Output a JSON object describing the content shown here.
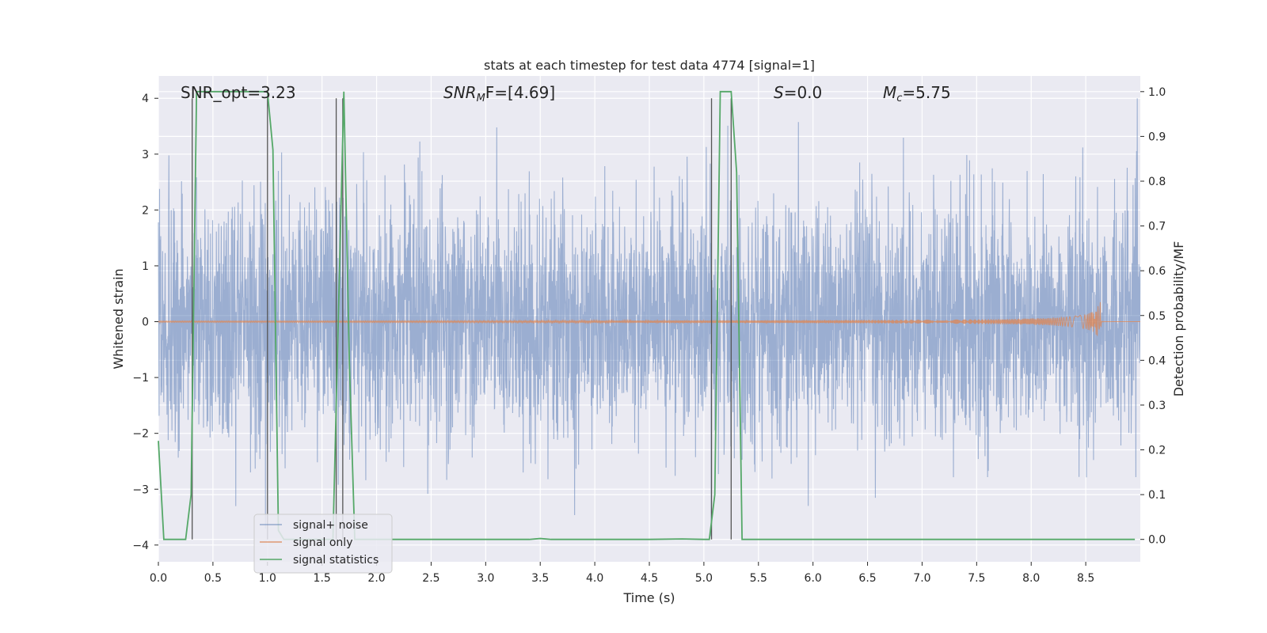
{
  "chart_data": {
    "type": "line",
    "title": "stats at each timestep for test data 4774 [signal=1]",
    "xlabel": "Time (s)",
    "ylabel_left": "Whitened strain",
    "ylabel_right": "Detection probability/MF",
    "xlim": [
      0,
      9.0
    ],
    "ylim_left": [
      -4.3,
      4.4
    ],
    "ylim_right": [
      -0.05,
      1.035
    ],
    "xticks": [
      "0.0",
      "0.5",
      "1.0",
      "1.5",
      "2.0",
      "2.5",
      "3.0",
      "3.5",
      "4.0",
      "4.5",
      "5.0",
      "5.5",
      "6.0",
      "6.5",
      "7.0",
      "7.5",
      "8.0",
      "8.5"
    ],
    "yticks_left": [
      "4",
      "3",
      "2",
      "1",
      "0",
      "−1",
      "−2",
      "−3",
      "−4"
    ],
    "yticks_right": [
      "1.0",
      "0.9",
      "0.8",
      "0.7",
      "0.6",
      "0.5",
      "0.4",
      "0.3",
      "0.2",
      "0.1",
      "0.0"
    ],
    "annotations": {
      "snr_opt": "SNR_opt=3.23",
      "snr_mf_main": "SNR",
      "snr_mf_sub": "M",
      "snr_mf_rest": "F=[4.69]",
      "s_main": "S",
      "s_rest": "=0.0",
      "mc_main": "M",
      "mc_sub": "c",
      "mc_rest": "=5.75"
    },
    "series": [
      {
        "name": "signal+ noise",
        "axis": "left",
        "color": "#4c72b0",
        "opacity": 0.5,
        "description_amplitude_std": 1.0
      },
      {
        "name": "signal only",
        "axis": "left",
        "color": "#dd8452",
        "chirp_end_time": 8.64,
        "chirp_peak": 0.35
      },
      {
        "name": "signal statistics",
        "axis": "right",
        "color": "#55a868",
        "x": [
          0.0,
          0.05,
          0.1,
          0.2,
          0.25,
          0.3,
          0.35,
          0.4,
          0.5,
          0.6,
          0.7,
          0.8,
          0.9,
          1.0,
          1.05,
          1.1,
          1.15,
          1.2,
          1.3,
          1.4,
          1.5,
          1.6,
          1.65,
          1.7,
          1.75,
          1.8,
          1.9,
          2.0,
          2.5,
          3.0,
          3.4,
          3.5,
          3.6,
          4.0,
          4.5,
          4.8,
          5.0,
          5.05,
          5.1,
          5.15,
          5.2,
          5.25,
          5.3,
          5.35,
          5.4,
          5.5,
          6.0,
          7.0,
          8.0,
          8.5,
          8.95
        ],
        "y": [
          0.22,
          0.0,
          0.0,
          0.0,
          0.0,
          0.1,
          1.0,
          1.0,
          1.0,
          1.0,
          1.0,
          1.0,
          1.0,
          1.0,
          0.87,
          0.02,
          0.0,
          0.0,
          0.0,
          0.0,
          0.0,
          0.0,
          0.5,
          1.0,
          0.4,
          0.0,
          0.0,
          0.0,
          0.0,
          0.0,
          0.0,
          0.002,
          0.0,
          0.0,
          0.0,
          0.001,
          0.0,
          0.0,
          0.1,
          1.0,
          1.0,
          1.0,
          0.82,
          0.0,
          0.0,
          0.0,
          0.0,
          0.0,
          0.0,
          0.0,
          0.0
        ]
      }
    ],
    "vlines": [
      0.31,
      1.0,
      1.63,
      1.69,
      5.07,
      5.25
    ],
    "vline_color": "#555555",
    "legend": {
      "position": "lower-left",
      "entries": [
        "signal+ noise",
        "signal only",
        "signal statistics"
      ]
    }
  }
}
